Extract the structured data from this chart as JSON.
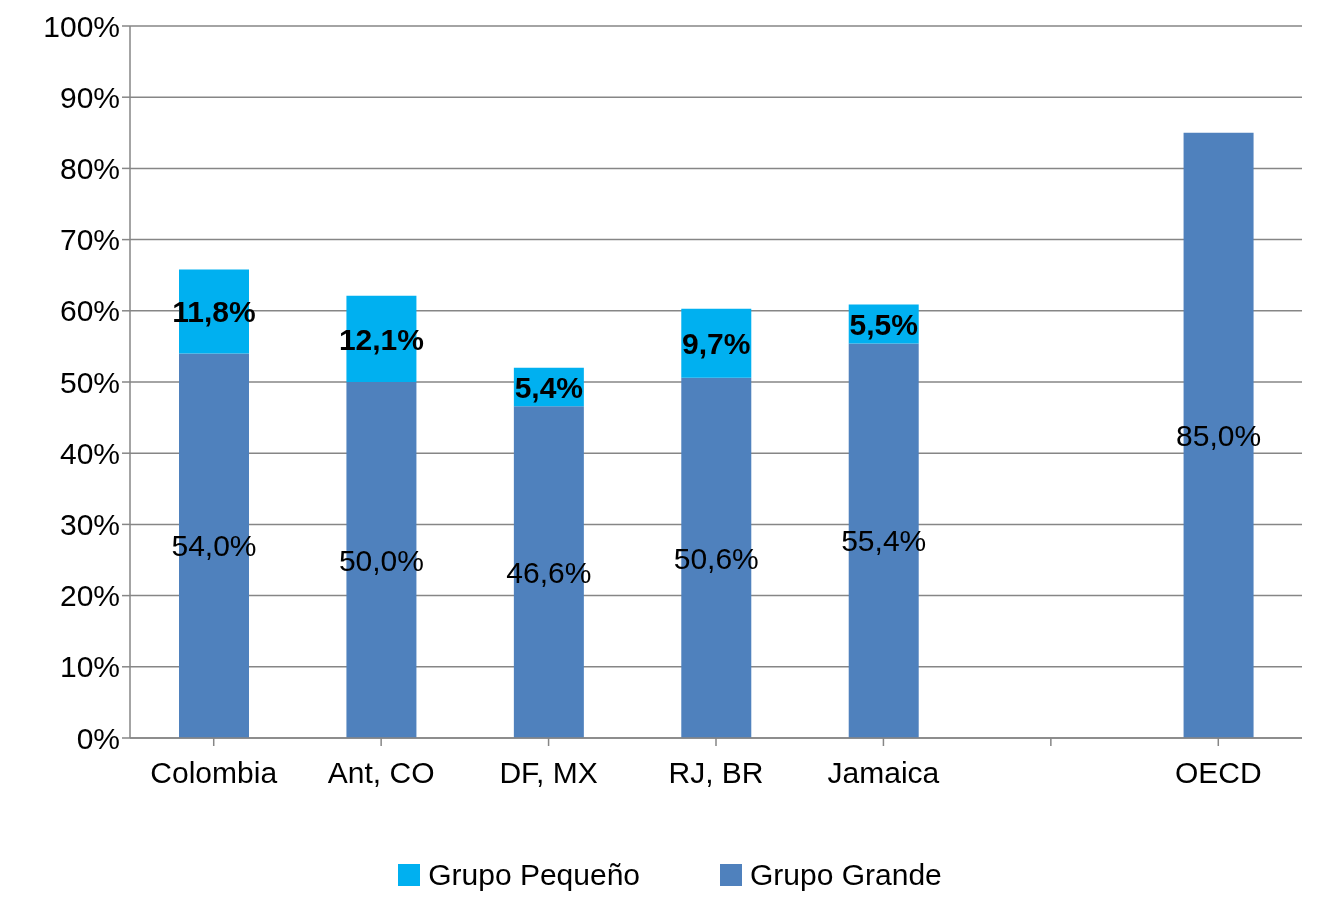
{
  "chart_data": {
    "type": "bar",
    "stacked": true,
    "categories": [
      "Colombia",
      "Ant, CO",
      "DF, MX",
      "RJ, BR",
      "Jamaica",
      null,
      "OECD"
    ],
    "series": [
      {
        "name": "Grupo Grande",
        "color": "#4f81bd",
        "values": [
          54.0,
          50.0,
          46.6,
          50.6,
          55.4,
          null,
          85.0
        ],
        "value_labels": [
          "54,0%",
          "50,0%",
          "46,6%",
          "50,6%",
          "55,4%",
          null,
          "85,0%"
        ]
      },
      {
        "name": "Grupo Pequeño",
        "color": "#00b0f0",
        "values": [
          11.8,
          12.1,
          5.4,
          9.7,
          5.5,
          null,
          null
        ],
        "value_labels": [
          "11,8%",
          "12,1%",
          "5,4%",
          "9,7%",
          "5,5%",
          null,
          null
        ]
      }
    ],
    "ylim": [
      0,
      100
    ],
    "yticks": [
      {
        "value": 0,
        "label": "0%"
      },
      {
        "value": 10,
        "label": "10%"
      },
      {
        "value": 20,
        "label": "20%"
      },
      {
        "value": 30,
        "label": "30%"
      },
      {
        "value": 40,
        "label": "40%"
      },
      {
        "value": 50,
        "label": "50%"
      },
      {
        "value": 60,
        "label": "60%"
      },
      {
        "value": 70,
        "label": "70%"
      },
      {
        "value": 80,
        "label": "80%"
      },
      {
        "value": 90,
        "label": "90%"
      },
      {
        "value": 100,
        "label": "100%"
      }
    ],
    "grid": "y",
    "legend": "bottom"
  }
}
